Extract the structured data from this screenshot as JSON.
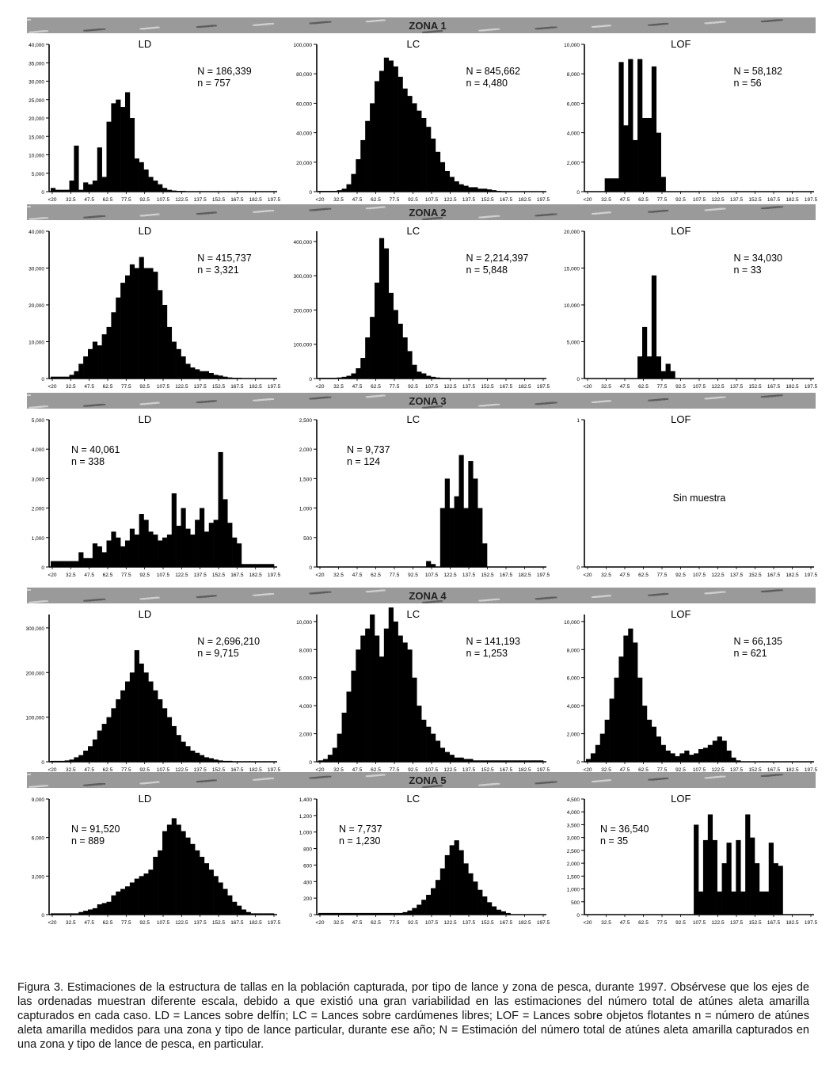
{
  "zone_labels": [
    "ZONA 1",
    "ZONA 2",
    "ZONA 3",
    "ZONA 4",
    "ZONA 5"
  ],
  "x_ticks": [
    "<20",
    "32.5",
    "47.5",
    "62.5",
    "77.5",
    "92.5",
    "107.5",
    "122.5",
    "137.5",
    "152.5",
    "167.5",
    "182.5",
    "197.5"
  ],
  "caption": "Figura 3. Estimaciones de la estructura de tallas en la población capturada, por tipo de lance y zona de pesca, durante 1997. Obsérvese que los ejes de las ordenadas muestran diferente escala, debido a que existió una gran variabilidad en las estimaciones del número total de atúnes aleta amarilla capturados en cada caso. LD = Lances sobre delfín; LC = Lances sobre cardúmenes libres; LOF = Lances sobre objetos flotantes n = número de atúnes aleta amarilla medidos para una zona y tipo de lance particular, durante ese año; N = Estimación del número total de atúnes aleta amarilla capturados en una zona y tipo de lance de pesca, en particular.",
  "chart_data": [
    {
      "type": "bar",
      "zone": "ZONA 1",
      "title": "LD",
      "N": "N = 186,339",
      "n": "n = 757",
      "yticks": [
        "0",
        "5,000",
        "10,000",
        "15,000",
        "20,000",
        "25,000",
        "30,000",
        "35,000",
        "40,000"
      ],
      "ymax": 40000,
      "values": [
        1000,
        500,
        500,
        500,
        3000,
        12500,
        500,
        2500,
        2000,
        3000,
        12000,
        4000,
        19000,
        24000,
        25000,
        23000,
        27000,
        20000,
        9000,
        8000,
        6000,
        4000,
        3000,
        2000,
        1000,
        500,
        300,
        200,
        200,
        100,
        100,
        100,
        100,
        100,
        100,
        100,
        100,
        100,
        100,
        100,
        100,
        100,
        100,
        100,
        100,
        100,
        100,
        100
      ]
    },
    {
      "type": "bar",
      "zone": "ZONA 1",
      "title": "LC",
      "N": "N = 845,662",
      "n": "n = 4,480",
      "yticks": [
        "0",
        "20,000",
        "40,000",
        "60,000",
        "80,000",
        "100,000"
      ],
      "ymax": 100000,
      "values": [
        500,
        500,
        500,
        500,
        1000,
        2000,
        5000,
        12000,
        22000,
        35000,
        48000,
        60000,
        75000,
        82000,
        91000,
        89000,
        85000,
        78000,
        70000,
        65000,
        60000,
        55000,
        50000,
        44000,
        36000,
        27000,
        20000,
        14000,
        10000,
        7000,
        5000,
        4000,
        3000,
        3000,
        2000,
        2000,
        1500,
        1000,
        500,
        300,
        200,
        200,
        200,
        200,
        200,
        200,
        200,
        200
      ]
    },
    {
      "type": "bar",
      "zone": "ZONA 1",
      "title": "LOF",
      "N": "N = 58,182",
      "n": "n = 56",
      "yticks": [
        "0",
        "2,000",
        "4,000",
        "6,000",
        "8,000",
        "10,000"
      ],
      "ymax": 10000,
      "values": [
        0,
        0,
        0,
        0,
        900,
        900,
        900,
        8800,
        4500,
        9000,
        3500,
        9000,
        5000,
        5000,
        8500,
        4000,
        1000,
        0,
        0,
        0,
        0,
        0,
        0,
        0,
        0,
        0,
        0,
        0,
        0,
        0,
        0,
        0,
        0,
        0,
        0,
        0,
        0,
        0,
        0,
        0,
        0,
        0,
        0,
        0,
        0,
        0,
        0,
        0
      ]
    },
    {
      "type": "bar",
      "zone": "ZONA 2",
      "title": "LD",
      "N": "N = 415,737",
      "n": "n = 3,321",
      "yticks": [
        "0",
        "10,000",
        "20,000",
        "30,000",
        "40,000"
      ],
      "ymax": 40000,
      "values": [
        500,
        500,
        500,
        500,
        1000,
        2000,
        4000,
        6000,
        8000,
        10000,
        9000,
        12000,
        14000,
        18000,
        22000,
        26000,
        28000,
        31000,
        30000,
        33000,
        30000,
        30000,
        29000,
        24000,
        20000,
        14000,
        10000,
        8000,
        6000,
        4000,
        3000,
        2500,
        2000,
        2000,
        1500,
        1000,
        800,
        500,
        300,
        200,
        200,
        100,
        100,
        100,
        100,
        100,
        100,
        100
      ]
    },
    {
      "type": "bar",
      "zone": "ZONA 2",
      "title": "LC",
      "N": "N = 2,214,397",
      "n": "n = 5,848",
      "yticks": [
        "0",
        "100,000",
        "200,000",
        "300,000",
        "400,000"
      ],
      "ymax": 430000,
      "values": [
        2000,
        2000,
        2000,
        2000,
        3000,
        5000,
        8000,
        15000,
        30000,
        60000,
        120000,
        180000,
        280000,
        410000,
        380000,
        250000,
        200000,
        160000,
        120000,
        80000,
        40000,
        20000,
        15000,
        8000,
        5000,
        3000,
        2000,
        2000,
        1000,
        1000,
        1000,
        1000,
        1000,
        1000,
        1000,
        1000,
        1000,
        1000,
        1000,
        1000,
        1000,
        1000,
        1000,
        1000,
        1000,
        1000,
        1000,
        1000
      ]
    },
    {
      "type": "bar",
      "zone": "ZONA 2",
      "title": "LOF",
      "N": "N = 34,030",
      "n": "n = 33",
      "yticks": [
        "0",
        "5,000",
        "10,000",
        "15,000",
        "20,000"
      ],
      "ymax": 20000,
      "values": [
        0,
        0,
        0,
        0,
        0,
        0,
        0,
        0,
        0,
        0,
        0,
        3000,
        7000,
        3000,
        14000,
        3000,
        1000,
        2000,
        1000,
        0,
        0,
        0,
        0,
        0,
        0,
        0,
        0,
        0,
        0,
        0,
        0,
        0,
        0,
        0,
        0,
        0,
        0,
        0,
        0,
        0,
        0,
        0,
        0,
        0,
        0,
        0,
        0,
        0
      ]
    },
    {
      "type": "bar",
      "zone": "ZONA 3",
      "title": "LD",
      "N": "N = 40,061",
      "n": "n = 338",
      "yticks": [
        "0",
        "1,000",
        "2,000",
        "3,000",
        "4,000",
        "5,000"
      ],
      "ymax": 5000,
      "values": [
        200,
        200,
        200,
        200,
        200,
        200,
        500,
        300,
        300,
        800,
        700,
        500,
        900,
        1200,
        1000,
        700,
        900,
        1300,
        1100,
        1800,
        1600,
        1200,
        1100,
        900,
        1000,
        1100,
        2500,
        1400,
        2000,
        1300,
        1100,
        1600,
        2000,
        1200,
        1500,
        1600,
        3900,
        2300,
        1500,
        1000,
        800,
        100,
        100,
        100,
        100,
        100,
        100,
        100
      ]
    },
    {
      "type": "bar",
      "zone": "ZONA 3",
      "title": "LC",
      "N": "N = 9,737",
      "n": "n = 124",
      "yticks": [
        "0",
        "500",
        "1,000",
        "1,500",
        "2,000",
        "2,500"
      ],
      "ymax": 2500,
      "values": [
        0,
        0,
        0,
        0,
        0,
        0,
        0,
        0,
        0,
        0,
        0,
        0,
        0,
        0,
        0,
        0,
        0,
        0,
        0,
        0,
        0,
        0,
        0,
        100,
        50,
        0,
        1000,
        1500,
        1000,
        1200,
        1900,
        1000,
        1800,
        1500,
        1000,
        400,
        0,
        0,
        0,
        0,
        0,
        0,
        0,
        0,
        0,
        0,
        0,
        0
      ]
    },
    {
      "type": "bar",
      "zone": "ZONA 3",
      "title": "LOF",
      "N": "",
      "n": "",
      "nosample": "Sin muestra",
      "yticks": [
        "0",
        "1"
      ],
      "ymax": 1,
      "values": [
        0,
        0,
        0,
        0,
        0,
        0,
        0,
        0,
        0,
        0,
        0,
        0,
        0,
        0,
        0,
        0,
        0,
        0,
        0,
        0,
        0,
        0,
        0,
        0,
        0,
        0,
        0,
        0,
        0,
        0,
        0,
        0,
        0,
        0,
        0,
        0,
        0,
        0,
        0,
        0,
        0,
        0,
        0,
        0,
        0,
        0,
        0,
        0
      ]
    },
    {
      "type": "bar",
      "zone": "ZONA 4",
      "title": "LD",
      "N": "N = 2,696,210",
      "n": "n = 9,715",
      "yticks": [
        "0",
        "100,000",
        "200,000",
        "300,000"
      ],
      "ymax": 330000,
      "values": [
        2000,
        2000,
        2000,
        3000,
        5000,
        10000,
        15000,
        25000,
        35000,
        50000,
        70000,
        85000,
        100000,
        120000,
        140000,
        160000,
        180000,
        200000,
        250000,
        220000,
        200000,
        180000,
        160000,
        140000,
        120000,
        100000,
        80000,
        60000,
        45000,
        35000,
        25000,
        20000,
        15000,
        10000,
        8000,
        5000,
        3000,
        2000,
        2000,
        1000,
        1000,
        1000,
        1000,
        1000,
        1000,
        1000,
        1000,
        1000
      ]
    },
    {
      "type": "bar",
      "zone": "ZONA 4",
      "title": "LC",
      "N": "N = 141,193",
      "n": "n = 1,253",
      "yticks": [
        "0",
        "2,000",
        "4,000",
        "6,000",
        "8,000",
        "10,000"
      ],
      "ymax": 10500,
      "values": [
        100,
        200,
        500,
        1000,
        2000,
        3500,
        5000,
        6500,
        8000,
        9000,
        9500,
        10500,
        9000,
        7500,
        9500,
        11000,
        10000,
        9000,
        8500,
        8000,
        6000,
        4000,
        3000,
        2500,
        2000,
        1500,
        1000,
        700,
        500,
        300,
        300,
        200,
        200,
        100,
        100,
        100,
        100,
        100,
        100,
        100,
        100,
        100,
        100,
        100,
        100,
        100,
        100,
        100
      ]
    },
    {
      "type": "bar",
      "zone": "ZONA 4",
      "title": "LOF",
      "N": "N = 66,135",
      "n": "n = 621",
      "yticks": [
        "0",
        "2,000",
        "4,000",
        "6,000",
        "8,000",
        "10,000"
      ],
      "ymax": 10500,
      "values": [
        200,
        600,
        1200,
        2000,
        3000,
        4500,
        6000,
        7500,
        9000,
        9500,
        8500,
        6000,
        4000,
        3000,
        2500,
        1800,
        1200,
        800,
        600,
        400,
        600,
        800,
        500,
        600,
        900,
        1000,
        1200,
        1500,
        1800,
        1500,
        800,
        300,
        100,
        0,
        0,
        0,
        0,
        0,
        0,
        0,
        0,
        0,
        0,
        0,
        0,
        0,
        0,
        0
      ]
    },
    {
      "type": "bar",
      "zone": "ZONA 5",
      "title": "LD",
      "N": "N = 91,520",
      "n": "n = 889",
      "yticks": [
        "0",
        "3,000",
        "6,000",
        "9,000"
      ],
      "ymax": 9000,
      "values": [
        100,
        100,
        100,
        100,
        100,
        100,
        200,
        300,
        400,
        500,
        800,
        900,
        1000,
        1500,
        1800,
        2000,
        2200,
        2500,
        2800,
        3000,
        3200,
        3500,
        4500,
        5000,
        6500,
        7000,
        7500,
        7000,
        6500,
        6000,
        5500,
        5000,
        4500,
        4000,
        3500,
        3000,
        2500,
        2000,
        1500,
        1000,
        700,
        400,
        200,
        100,
        100,
        100,
        100,
        100
      ]
    },
    {
      "type": "bar",
      "zone": "ZONA 5",
      "title": "LC",
      "N": "N = 7,737",
      "n": "n = 1,230",
      "yticks": [
        "0",
        "200",
        "400",
        "600",
        "800",
        "1,000",
        "1,200",
        "1,400"
      ],
      "ymax": 1400,
      "values": [
        20,
        20,
        20,
        20,
        20,
        20,
        20,
        20,
        20,
        20,
        20,
        20,
        20,
        20,
        20,
        20,
        20,
        20,
        30,
        50,
        80,
        120,
        180,
        240,
        320,
        420,
        560,
        720,
        840,
        900,
        780,
        620,
        500,
        400,
        300,
        220,
        150,
        100,
        60,
        40,
        20,
        0,
        0,
        0,
        0,
        0,
        0,
        0
      ]
    },
    {
      "type": "bar",
      "zone": "ZONA 5",
      "title": "LOF",
      "N": "N = 36,540",
      "n": "n = 35",
      "yticks": [
        "0",
        "500",
        "1,000",
        "1,500",
        "2,000",
        "2,500",
        "3,000",
        "3,500",
        "4,000",
        "4,500"
      ],
      "ymax": 4500,
      "values": [
        0,
        0,
        0,
        0,
        0,
        0,
        0,
        0,
        0,
        0,
        0,
        0,
        0,
        0,
        0,
        0,
        0,
        0,
        0,
        0,
        0,
        0,
        0,
        3500,
        900,
        2900,
        3900,
        2900,
        900,
        2000,
        2800,
        900,
        2900,
        900,
        3900,
        3000,
        2000,
        900,
        900,
        2800,
        2000,
        1900,
        0,
        0,
        0,
        0,
        0,
        0
      ]
    }
  ]
}
